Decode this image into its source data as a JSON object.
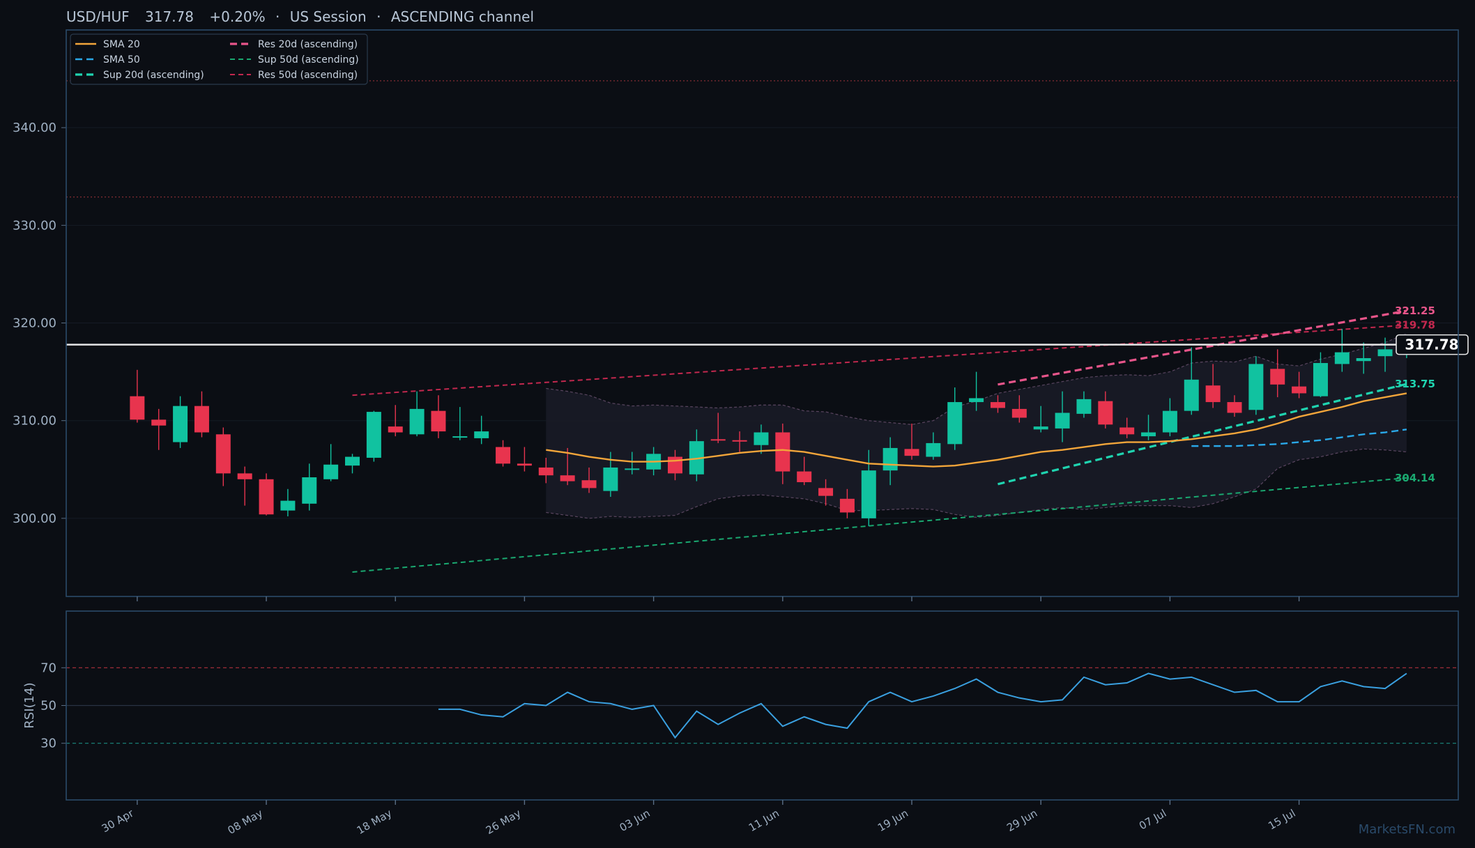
{
  "header": {
    "symbol": "USD/HUF",
    "price": "317.78",
    "change": "+0.20%",
    "session": "US Session",
    "channel": "ASCENDING channel"
  },
  "watermark": "MarketsFN.com",
  "colors": {
    "bg": "#0b0e14",
    "up": "#11c2a0",
    "down": "#e8344e",
    "sma20": "#f2a53a",
    "sma50": "#2aa8e8",
    "sup20": "#1fd4b0",
    "res20": "#e8558a",
    "sup50": "#1aa870",
    "res50": "#c2284e",
    "rsi": "#3aa0e0",
    "axis": "#2a4a6a"
  },
  "legend": [
    {
      "key": "sma20",
      "label": "SMA 20",
      "dash": "solid"
    },
    {
      "key": "sma50",
      "label": "SMA 50",
      "dash": "dashed"
    },
    {
      "key": "sup20",
      "label": "Sup 20d (ascending)",
      "dash": "dashed"
    },
    {
      "key": "res20",
      "label": "Res 20d (ascending)",
      "dash": "dashed"
    },
    {
      "key": "sup50",
      "label": "Sup 50d (ascending)",
      "dash": "dashed"
    },
    {
      "key": "res50",
      "label": "Res 50d (ascending)",
      "dash": "dashed"
    }
  ],
  "chart_data": {
    "type": "candlestick",
    "ylim": [
      292,
      350
    ],
    "yticks": [
      300,
      310,
      320,
      330,
      340
    ],
    "ytick_labels": [
      "300.00",
      "310.00",
      "320.00",
      "330.00",
      "340.00"
    ],
    "x_range": [
      -3.3,
      61.4
    ],
    "xticks": [
      0,
      6,
      12,
      18,
      24,
      30,
      36,
      42,
      48,
      54
    ],
    "xtick_labels": [
      "30 Apr",
      "08 May",
      "18 May",
      "26 May",
      "03 Jun",
      "11 Jun",
      "19 Jun",
      "29 Jun",
      "07 Jul",
      "15 Jul"
    ],
    "hlines": [
      {
        "y": 344.8,
        "color": "#7a2a30"
      },
      {
        "y": 332.9,
        "color": "#7a2a30"
      }
    ],
    "last_price": 317.78,
    "candles": [
      [
        312.5,
        315.2,
        309.8,
        310.1
      ],
      [
        310.1,
        311.2,
        307.0,
        309.5
      ],
      [
        307.8,
        312.5,
        307.2,
        311.5
      ],
      [
        311.5,
        313.0,
        308.3,
        308.8
      ],
      [
        308.6,
        309.3,
        303.3,
        304.6
      ],
      [
        304.6,
        305.3,
        301.3,
        304.0
      ],
      [
        304.0,
        304.6,
        300.3,
        300.4
      ],
      [
        300.8,
        303.0,
        300.2,
        301.8
      ],
      [
        301.5,
        305.6,
        300.8,
        304.2
      ],
      [
        304.0,
        307.6,
        303.8,
        305.5
      ],
      [
        305.4,
        306.6,
        304.6,
        306.3
      ],
      [
        306.2,
        311.0,
        305.8,
        310.9
      ],
      [
        309.4,
        311.6,
        308.4,
        308.8
      ],
      [
        308.6,
        313.0,
        308.4,
        311.2
      ],
      [
        311.0,
        312.6,
        308.2,
        308.9
      ],
      [
        308.3,
        311.4,
        308.0,
        308.4
      ],
      [
        308.2,
        310.5,
        307.6,
        308.9
      ],
      [
        307.3,
        308.0,
        305.3,
        305.6
      ],
      [
        305.6,
        307.3,
        304.8,
        305.4
      ],
      [
        305.2,
        306.2,
        303.6,
        304.4
      ],
      [
        304.4,
        307.2,
        303.4,
        303.8
      ],
      [
        303.9,
        305.2,
        302.6,
        303.1
      ],
      [
        302.8,
        306.8,
        302.2,
        305.2
      ],
      [
        305.0,
        306.8,
        304.5,
        305.1
      ],
      [
        305.0,
        307.3,
        304.4,
        306.6
      ],
      [
        306.3,
        307.0,
        303.9,
        304.6
      ],
      [
        304.5,
        309.1,
        303.8,
        307.9
      ],
      [
        308.1,
        310.8,
        307.7,
        308.0
      ],
      [
        308.0,
        308.9,
        306.8,
        307.9
      ],
      [
        307.5,
        309.6,
        306.6,
        308.8
      ],
      [
        308.8,
        309.7,
        303.5,
        304.8
      ],
      [
        304.8,
        306.3,
        303.4,
        303.7
      ],
      [
        303.1,
        304.0,
        301.3,
        302.3
      ],
      [
        302.0,
        303.0,
        300.0,
        300.6
      ],
      [
        300.0,
        307.0,
        299.2,
        304.9
      ],
      [
        304.9,
        308.3,
        303.4,
        307.2
      ],
      [
        307.1,
        309.7,
        306.0,
        306.4
      ],
      [
        306.3,
        308.8,
        306.0,
        307.7
      ],
      [
        307.6,
        313.4,
        307.0,
        311.9
      ],
      [
        311.9,
        315.0,
        311.0,
        312.3
      ],
      [
        311.9,
        312.6,
        310.8,
        311.3
      ],
      [
        311.2,
        312.6,
        309.8,
        310.3
      ],
      [
        309.1,
        311.5,
        308.8,
        309.4
      ],
      [
        309.2,
        313.0,
        307.8,
        310.8
      ],
      [
        310.7,
        313.0,
        310.3,
        312.2
      ],
      [
        312.0,
        313.0,
        309.2,
        309.6
      ],
      [
        309.3,
        310.3,
        308.2,
        308.6
      ],
      [
        308.4,
        310.6,
        308.0,
        308.8
      ],
      [
        308.8,
        312.3,
        308.4,
        311.0
      ],
      [
        311.0,
        317.5,
        310.6,
        314.2
      ],
      [
        313.6,
        315.8,
        311.3,
        311.9
      ],
      [
        311.9,
        312.6,
        310.4,
        310.8
      ],
      [
        311.1,
        316.6,
        310.6,
        315.8
      ],
      [
        315.3,
        317.3,
        312.4,
        313.7
      ],
      [
        313.5,
        315.0,
        312.3,
        312.8
      ],
      [
        312.5,
        317.0,
        312.4,
        315.9
      ],
      [
        315.8,
        319.4,
        315.0,
        317.0
      ],
      [
        316.1,
        318.0,
        314.8,
        316.4
      ],
      [
        316.6,
        318.5,
        315.0,
        317.3
      ],
      [
        317.1,
        318.3,
        316.4,
        317.78
      ]
    ],
    "sma20": {
      "start": 19,
      "values": [
        307.0,
        306.7,
        306.3,
        306.0,
        305.8,
        305.8,
        305.9,
        306.1,
        306.4,
        306.7,
        306.9,
        307.0,
        306.8,
        306.4,
        306.0,
        305.6,
        305.5,
        305.4,
        305.3,
        305.4,
        305.7,
        306.0,
        306.4,
        306.8,
        307.0,
        307.3,
        307.6,
        307.8,
        307.8,
        307.9,
        308.1,
        308.4,
        308.7,
        309.1,
        309.7,
        310.4,
        310.9,
        311.4,
        312.0,
        312.4,
        312.8
      ]
    },
    "sma50": {
      "start": 49,
      "values": [
        307.4,
        307.4,
        307.4,
        307.5,
        307.6,
        307.8,
        308.0,
        308.3,
        308.6,
        308.8,
        309.1
      ]
    },
    "bands": {
      "start": 19,
      "upper": [
        313.3,
        313.0,
        312.6,
        311.8,
        311.5,
        311.6,
        311.5,
        311.4,
        311.3,
        311.4,
        311.6,
        311.6,
        311.0,
        310.9,
        310.4,
        310.0,
        309.8,
        309.6,
        310.0,
        311.4,
        312.0,
        312.8,
        313.2,
        313.6,
        314.0,
        314.4,
        314.6,
        314.7,
        314.6,
        315.0,
        315.9,
        316.1,
        316.0,
        316.6,
        315.8,
        315.6,
        316.3,
        316.8,
        317.4,
        318.0,
        318.9
      ],
      "lower": [
        300.6,
        300.3,
        300.0,
        300.2,
        300.1,
        300.2,
        300.3,
        301.2,
        302.0,
        302.3,
        302.4,
        302.2,
        302.0,
        301.5,
        300.8,
        300.8,
        300.9,
        301.0,
        300.9,
        300.4,
        300.1,
        300.3,
        300.6,
        300.9,
        301.1,
        300.9,
        301.1,
        301.3,
        301.3,
        301.3,
        301.1,
        301.5,
        302.2,
        303.0,
        305.1,
        306.0,
        306.3,
        306.8,
        307.1,
        307.0,
        306.8
      ]
    },
    "sup20": {
      "x": [
        40,
        59
      ],
      "y": [
        303.5,
        313.75
      ]
    },
    "res20": {
      "x": [
        40,
        59
      ],
      "y": [
        313.7,
        321.25
      ]
    },
    "sup50": {
      "x": [
        10,
        59
      ],
      "y": [
        294.5,
        304.14
      ]
    },
    "res50": {
      "x": [
        10,
        59
      ],
      "y": [
        312.6,
        319.78
      ]
    },
    "end_labels": [
      {
        "key": "res20",
        "text": "321.25",
        "y": 321.25
      },
      {
        "key": "res50",
        "text": "319.78",
        "y": 319.78
      },
      {
        "key": "sup20",
        "text": "313.75",
        "y": 313.75
      },
      {
        "key": "sup50",
        "text": "304.14",
        "y": 304.14
      }
    ],
    "rsi": {
      "label": "RSI(14)",
      "ylim": [
        0,
        100
      ],
      "yticks": [
        30,
        50,
        70
      ],
      "levels": [
        70,
        50,
        30
      ],
      "start": 14,
      "values": [
        48,
        48,
        45,
        44,
        51,
        50,
        57,
        52,
        51,
        48,
        50,
        33,
        47,
        40,
        46,
        51,
        39,
        44,
        40,
        38,
        52,
        57,
        52,
        55,
        59,
        64,
        57,
        54,
        52,
        53,
        65,
        61,
        62,
        67,
        64,
        65,
        61,
        57,
        58,
        52,
        52,
        60,
        63,
        60,
        59,
        67
      ]
    }
  }
}
